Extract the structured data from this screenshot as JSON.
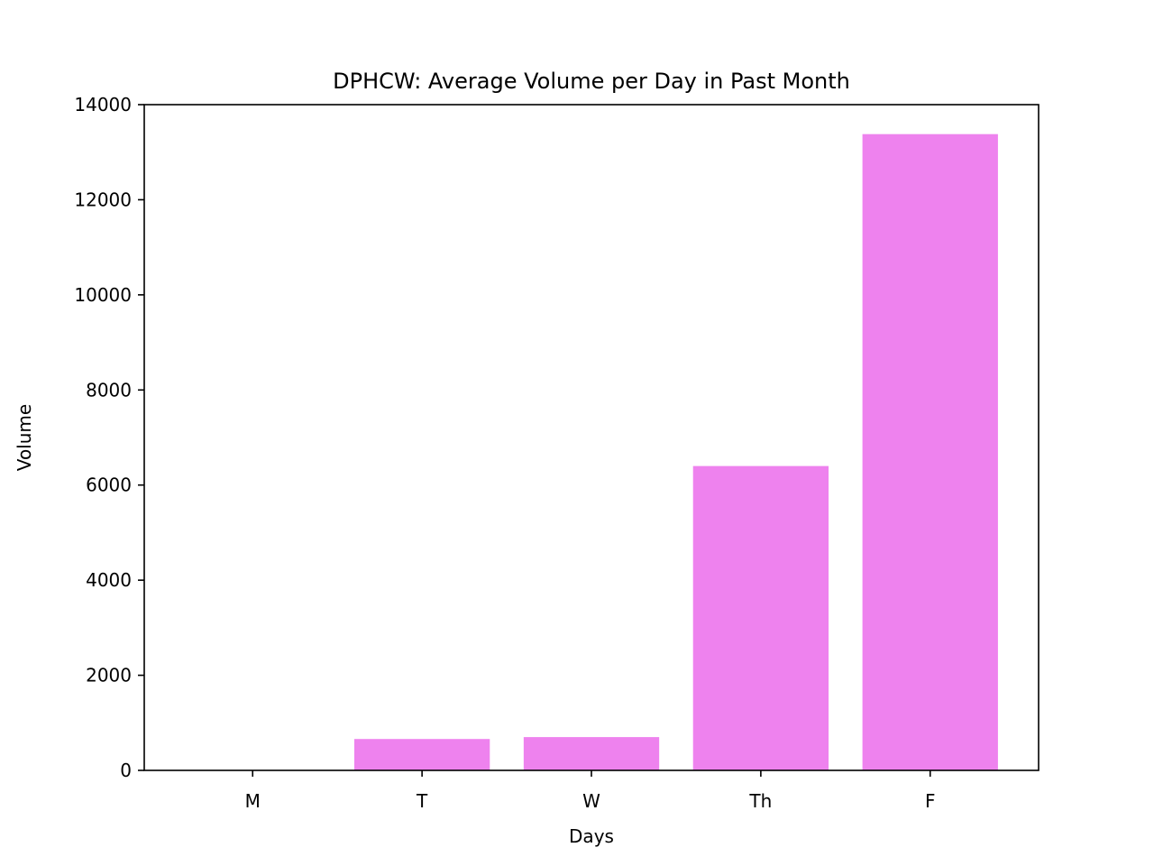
{
  "chart_data": {
    "type": "bar",
    "title": "DPHCW: Average Volume per Day in Past Month",
    "xlabel": "Days",
    "ylabel": "Volume",
    "categories": [
      "M",
      "T",
      "W",
      "Th",
      "F"
    ],
    "values": [
      0,
      660,
      700,
      6400,
      13380
    ],
    "ylim": [
      0,
      14000
    ],
    "yticks": [
      0,
      2000,
      4000,
      6000,
      8000,
      10000,
      12000,
      14000
    ],
    "grid": false,
    "legend": "none",
    "colors": {
      "bar": "#ee82ee",
      "axis": "#000000",
      "text": "#000000",
      "background": "#ffffff"
    }
  }
}
